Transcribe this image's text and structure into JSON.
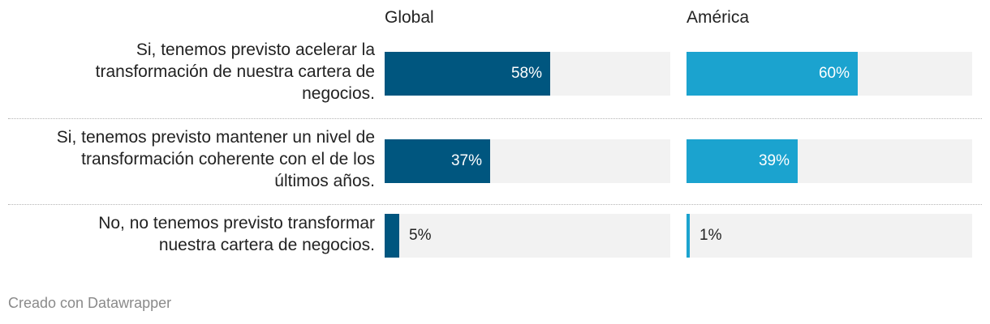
{
  "chart_data": {
    "type": "bar",
    "orientation": "horizontal",
    "title": "",
    "categories": [
      "Si, tenemos previsto acelerar la transformación de nuestra cartera de negocios.",
      "Si, tenemos previsto mantener un nivel de transformación coherente con el de los últimos años.",
      "No, no tenemos previsto transformar nuestra cartera de negocios."
    ],
    "category_lines": [
      [
        "Si, tenemos previsto acelerar la",
        "transformación de nuestra cartera de",
        "negocios."
      ],
      [
        "Si, tenemos previsto mantener un nivel de",
        "transformación coherente con el de los",
        "últimos años."
      ],
      [
        "No, no tenemos previsto transformar",
        "nuestra cartera de negocios."
      ]
    ],
    "series": [
      {
        "name": "Global",
        "values": [
          58,
          37,
          5
        ],
        "labels": [
          "58%",
          "37%",
          "5%"
        ],
        "color": "#00567f"
      },
      {
        "name": "América",
        "values": [
          60,
          39,
          1
        ],
        "labels": [
          "60%",
          "39%",
          "1%"
        ],
        "color": "#1ba3cf"
      }
    ],
    "xlim": [
      0,
      100
    ],
    "unit": "%"
  },
  "colors": {
    "track": "#f2f2f2",
    "separator": "#b5b5b5",
    "footer_text": "#8a8a8a"
  },
  "footer": {
    "text": "Creado con Datawrapper"
  }
}
